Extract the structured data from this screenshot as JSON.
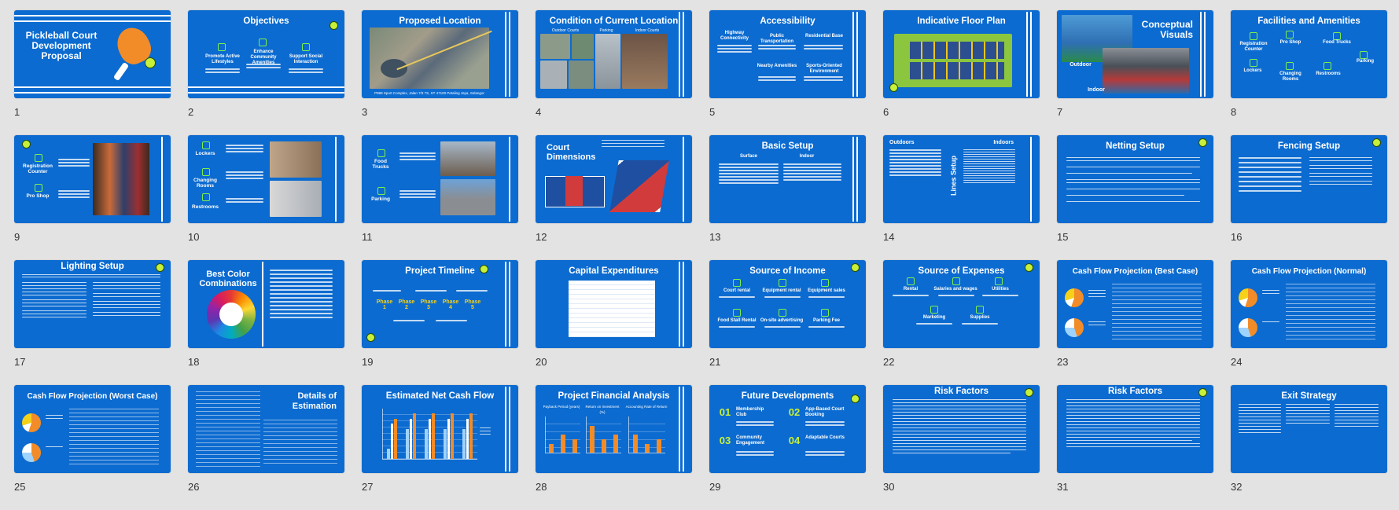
{
  "slides": [
    {
      "n": "1",
      "title": "Pickleball Court Development Proposal"
    },
    {
      "n": "2",
      "title": "Objectives",
      "items": [
        "Promote Active Lifestyles",
        "Enhance Community Amenities",
        "Support Social Interaction"
      ]
    },
    {
      "n": "3",
      "title": "Proposed Location",
      "caption": "P999 Sport Complex, Jalan 7/3 7S, ST 47100 Petaling Jaya, Selangor"
    },
    {
      "n": "4",
      "title": "Condition of Current Location",
      "items": [
        "Outdoor Courts",
        "Parking",
        "Indoor Courts"
      ]
    },
    {
      "n": "5",
      "title": "Accessibility",
      "items": [
        "Highway Connectivity",
        "Public Transportation",
        "Residential Base",
        "Nearby Amenities",
        "Sports-Oriented Environment"
      ]
    },
    {
      "n": "6",
      "title": "Indicative Floor Plan"
    },
    {
      "n": "7",
      "title": "Conceptual Visuals",
      "items": [
        "Outdoor",
        "Indoor"
      ]
    },
    {
      "n": "8",
      "title": "Facilities and Amenities",
      "items": [
        "Registration Counter",
        "Pro Shop",
        "Food Trucks",
        "Parking",
        "Lockers",
        "Changing Rooms",
        "Restrooms"
      ]
    },
    {
      "n": "9",
      "title": "",
      "items": [
        "Registration Counter",
        "Pro Shop"
      ]
    },
    {
      "n": "10",
      "title": "",
      "items": [
        "Lockers",
        "Changing Rooms",
        "Restrooms"
      ]
    },
    {
      "n": "11",
      "title": "",
      "items": [
        "Food Trucks",
        "Parking"
      ]
    },
    {
      "n": "12",
      "title": "Court Dimensions"
    },
    {
      "n": "13",
      "title": "Basic Setup",
      "items": [
        "Surface",
        "Indoor"
      ]
    },
    {
      "n": "14",
      "title": "Lines Setup",
      "items": [
        "Outdoors",
        "Indoors"
      ]
    },
    {
      "n": "15",
      "title": "Netting Setup"
    },
    {
      "n": "16",
      "title": "Fencing Setup"
    },
    {
      "n": "17",
      "title": "Lighting Setup"
    },
    {
      "n": "18",
      "title": "Best Color Combinations"
    },
    {
      "n": "19",
      "title": "Project Timeline",
      "items": [
        "Phase 1",
        "Phase 2",
        "Phase 3",
        "Phase 4",
        "Phase 5"
      ]
    },
    {
      "n": "20",
      "title": "Capital Expenditures"
    },
    {
      "n": "21",
      "title": "Source of Income",
      "items": [
        "Court rental",
        "Equipment rental",
        "Equipment sales",
        "Food Stall Rental",
        "On-site advertising",
        "Parking Fee"
      ]
    },
    {
      "n": "22",
      "title": "Source of Expenses",
      "items": [
        "Rental",
        "Salaries and wages",
        "Utilities",
        "Marketing",
        "Supplies"
      ]
    },
    {
      "n": "23",
      "title": "Cash Flow Projection (Best Case)"
    },
    {
      "n": "24",
      "title": "Cash Flow Projection (Normal)"
    },
    {
      "n": "25",
      "title": "Cash Flow Projection (Worst Case)"
    },
    {
      "n": "26",
      "title": "Details of Estimation"
    },
    {
      "n": "27",
      "title": "Estimated Net Cash Flow"
    },
    {
      "n": "28",
      "title": "Project Financial Analysis",
      "items": [
        "Payback Period (years)",
        "Return on Investment (%)",
        "Accounting Rate of Return"
      ]
    },
    {
      "n": "29",
      "title": "Future Developments",
      "items": [
        "01",
        "Membership Club",
        "02",
        "App-Based Court Booking",
        "03",
        "Community Engagement",
        "04",
        "Adaptable Courts"
      ]
    },
    {
      "n": "30",
      "title": "Risk Factors"
    },
    {
      "n": "31",
      "title": "Risk Factors"
    },
    {
      "n": "32",
      "title": "Exit Strategy"
    }
  ],
  "colors": {
    "slide_bg": "#0c6bd0",
    "accent_green": "#7ef04a",
    "accent_orange": "#f28c28",
    "page_bg": "#e3e3e3"
  },
  "chart_data": [
    {
      "type": "bar",
      "title": "Estimated Net Cash Flow",
      "categories": [
        "",
        "",
        "",
        "",
        ""
      ],
      "series": [
        {
          "values": [
            2,
            6,
            6,
            6,
            6
          ]
        },
        {
          "values": [
            7,
            8,
            8,
            8,
            8
          ]
        },
        {
          "values": [
            8,
            9,
            9,
            9,
            9
          ]
        }
      ]
    },
    {
      "type": "bar",
      "title": "Project Financial Analysis",
      "series": [
        {
          "name": "Payback Period (years)",
          "values": [
            2,
            4,
            3
          ]
        },
        {
          "name": "Return on Investment (%)",
          "values": [
            6,
            3,
            4
          ]
        },
        {
          "name": "Accounting Rate of Return",
          "values": [
            4,
            2,
            3
          ]
        }
      ]
    }
  ]
}
